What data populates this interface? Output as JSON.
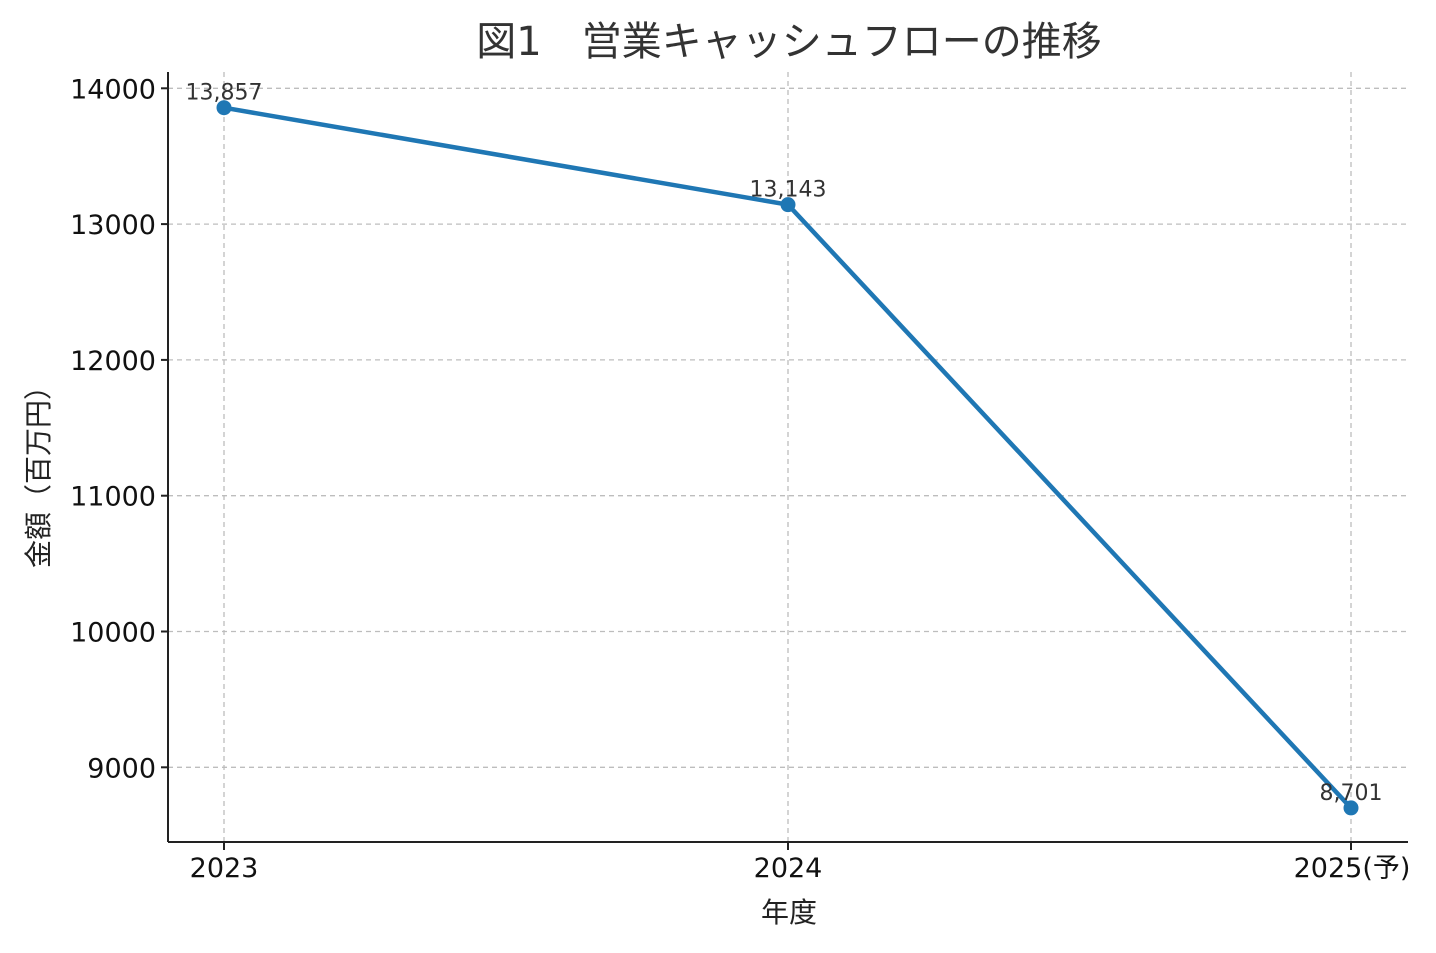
{
  "chart_data": {
    "type": "line",
    "title": "図1　営業キャッシュフローの推移",
    "xlabel": "年度",
    "ylabel": "金額（百万円）",
    "categories": [
      "2023",
      "2024",
      "2025(予)"
    ],
    "series": [
      {
        "values": [
          13857,
          13143,
          8701
        ],
        "labels": [
          "13,857",
          "13,143",
          "8,701"
        ]
      }
    ],
    "yticks": [
      "9000",
      "10000",
      "11000",
      "12000",
      "13000",
      "14000"
    ],
    "ytick_values": [
      9000,
      10000,
      11000,
      12000,
      13000,
      14000
    ],
    "ylim": [
      8450,
      14120
    ],
    "grid": true,
    "legend": "none",
    "colors": {
      "line": "#1f77b4",
      "grid": "#bdbdbd",
      "axis": "#222222"
    }
  }
}
